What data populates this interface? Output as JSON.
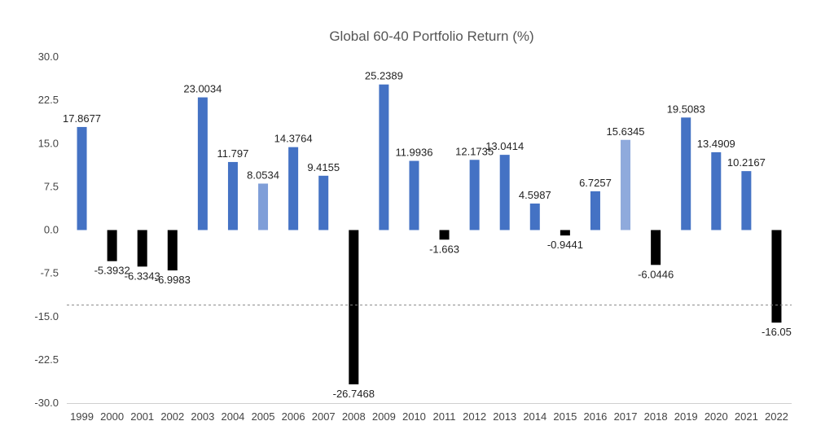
{
  "chart_data": {
    "type": "bar",
    "title": "Global 60-40 Portfolio Return (%)",
    "xlabel": "",
    "ylabel": "",
    "ylim": [
      -30.0,
      30.0
    ],
    "yticks": [
      "30.0",
      "22.5",
      "15.0",
      "7.5",
      "0.0",
      "-7.5",
      "-15.0",
      "-22.5",
      "-30.0"
    ],
    "ytick_values": [
      30,
      22.5,
      15,
      7.5,
      0,
      -7.5,
      -15,
      -22.5,
      -30
    ],
    "categories": [
      "1999",
      "2000",
      "2001",
      "2002",
      "2003",
      "2004",
      "2005",
      "2006",
      "2007",
      "2008",
      "2009",
      "2010",
      "2011",
      "2012",
      "2013",
      "2014",
      "2015",
      "2016",
      "2017",
      "2018",
      "2019",
      "2020",
      "2021",
      "2022"
    ],
    "values": [
      17.8677,
      -5.3932,
      -6.3343,
      -6.9983,
      23.0034,
      11.797,
      8.0534,
      14.3764,
      9.4155,
      -26.7468,
      25.2389,
      11.9936,
      -1.663,
      12.1735,
      13.0414,
      4.5987,
      -0.9441,
      6.7257,
      15.6345,
      -6.0446,
      19.5083,
      13.4909,
      10.2167,
      -16.05
    ],
    "labels": [
      "17.8677",
      "-5.3932",
      "-6.3343",
      "-6.9983",
      "23.0034",
      "11.797",
      "8.0534",
      "14.3764",
      "9.4155",
      "-26.7468",
      "25.2389",
      "11.9936",
      "-1.663",
      "12.1735",
      "13.0414",
      "4.5987",
      "-0.9441",
      "6.7257",
      "15.6345",
      "-6.0446",
      "19.5083",
      "13.4909",
      "10.2167",
      "-16.05"
    ],
    "colors": [
      "#4472C4",
      "#000000",
      "#000000",
      "#000000",
      "#4472C4",
      "#4472C4",
      "#7F9ED8",
      "#4472C4",
      "#4472C4",
      "#000000",
      "#4472C4",
      "#4472C4",
      "#000000",
      "#4472C4",
      "#4472C4",
      "#4472C4",
      "#000000",
      "#4472C4",
      "#8FAADC",
      "#000000",
      "#4472C4",
      "#4472C4",
      "#4472C4",
      "#000000"
    ],
    "reference_line": {
      "value": -13.0,
      "style": "dashed",
      "color": "#888888"
    },
    "grid": false,
    "legend": "none"
  }
}
